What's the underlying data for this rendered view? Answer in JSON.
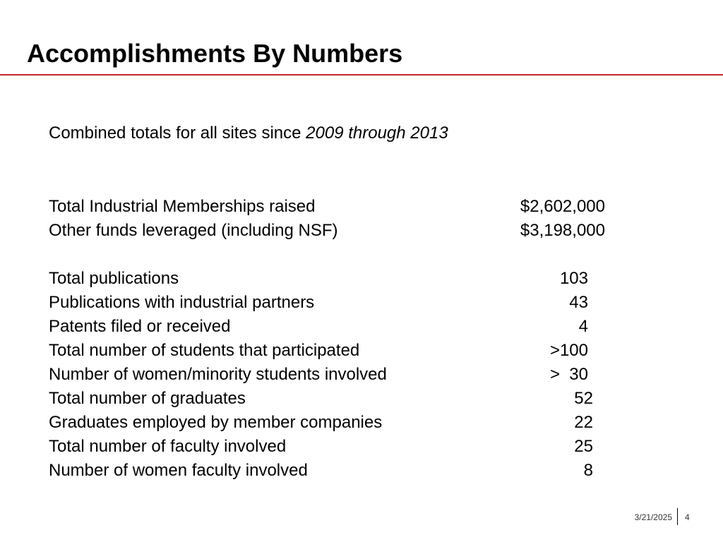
{
  "slide": {
    "title": "Accomplishments By Numbers",
    "subtitle_prefix": "Combined totals for all sites since ",
    "subtitle_italic": "2009 through 2013",
    "funds": [
      {
        "label": "Total Industrial Memberships raised",
        "value": "$2,602,000"
      },
      {
        "label": "Other funds leveraged (including NSF)",
        "value": "$3,198,000"
      }
    ],
    "metrics": [
      {
        "label": "Total publications",
        "value": "103"
      },
      {
        "label": "Publications with industrial partners",
        "value": "43"
      },
      {
        "label": "Patents filed or received",
        "value": "4"
      },
      {
        "label": "Total number of students that participated",
        "value": ">100"
      },
      {
        "label": "Number of women/minority students involved",
        "value": ">  30"
      },
      {
        "label": "Total number of graduates",
        "value": "52"
      },
      {
        "label": "Graduates employed by member companies",
        "value": "22"
      },
      {
        "label": "Total number of faculty involved",
        "value": "25"
      },
      {
        "label": "Number of women faculty involved",
        "value": "8"
      }
    ]
  },
  "footer": {
    "date": "3/21/2025",
    "page_number": "4"
  },
  "colors": {
    "accent_rule": "#c1272d"
  }
}
